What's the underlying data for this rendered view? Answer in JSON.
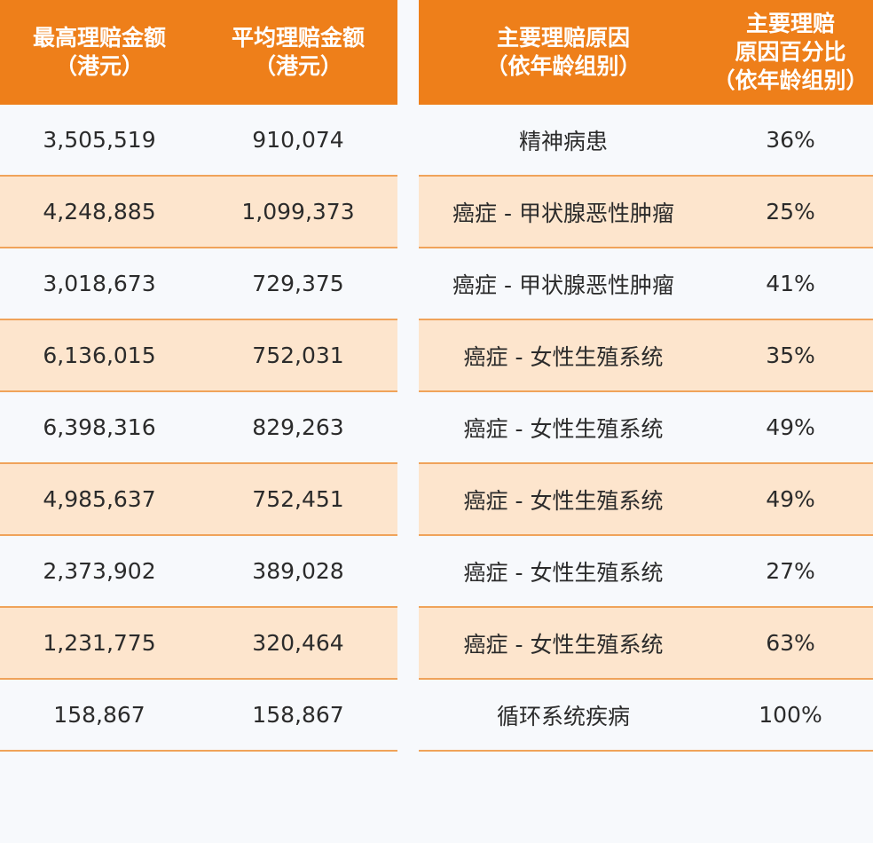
{
  "left_table": {
    "headers": [
      {
        "line1": "最高理赔金额",
        "line2": "（港元）"
      },
      {
        "line1": "平均理赔金额",
        "line2": "（港元）"
      }
    ],
    "rows": [
      {
        "max": "3,505,519",
        "avg": "910,074"
      },
      {
        "max": "4,248,885",
        "avg": "1,099,373"
      },
      {
        "max": "3,018,673",
        "avg": "729,375"
      },
      {
        "max": "6,136,015",
        "avg": "752,031"
      },
      {
        "max": "6,398,316",
        "avg": "829,263"
      },
      {
        "max": "4,985,637",
        "avg": "752,451"
      },
      {
        "max": "2,373,902",
        "avg": "389,028"
      },
      {
        "max": "1,231,775",
        "avg": "320,464"
      },
      {
        "max": "158,867",
        "avg": "158,867"
      }
    ]
  },
  "right_table": {
    "headers": [
      {
        "line1": "主要理赔原因",
        "line2": "（依年龄组别）"
      },
      {
        "line1": "主要理赔",
        "line2": "原因百分比",
        "line3": "（依年龄组别）"
      }
    ],
    "rows": [
      {
        "reason": "精神病患",
        "pct": "36%"
      },
      {
        "reason": "癌症 - 甲状腺恶性肿瘤",
        "pct": "25%"
      },
      {
        "reason": "癌症 - 甲状腺恶性肿瘤",
        "pct": "41%"
      },
      {
        "reason": "癌症 - 女性生殖系统",
        "pct": "35%"
      },
      {
        "reason": "癌症 - 女性生殖系统",
        "pct": "49%"
      },
      {
        "reason": "癌症 - 女性生殖系统",
        "pct": "49%"
      },
      {
        "reason": "癌症 - 女性生殖系统",
        "pct": "27%"
      },
      {
        "reason": "癌症 - 女性生殖系统",
        "pct": "63%"
      },
      {
        "reason": "循环系统疾病",
        "pct": "100%"
      }
    ]
  },
  "colors": {
    "header_bg": "#ee7f1a",
    "stripe_bg": "#fde5cd",
    "page_bg": "#f7f9fc",
    "divider": "#f0a35a"
  }
}
